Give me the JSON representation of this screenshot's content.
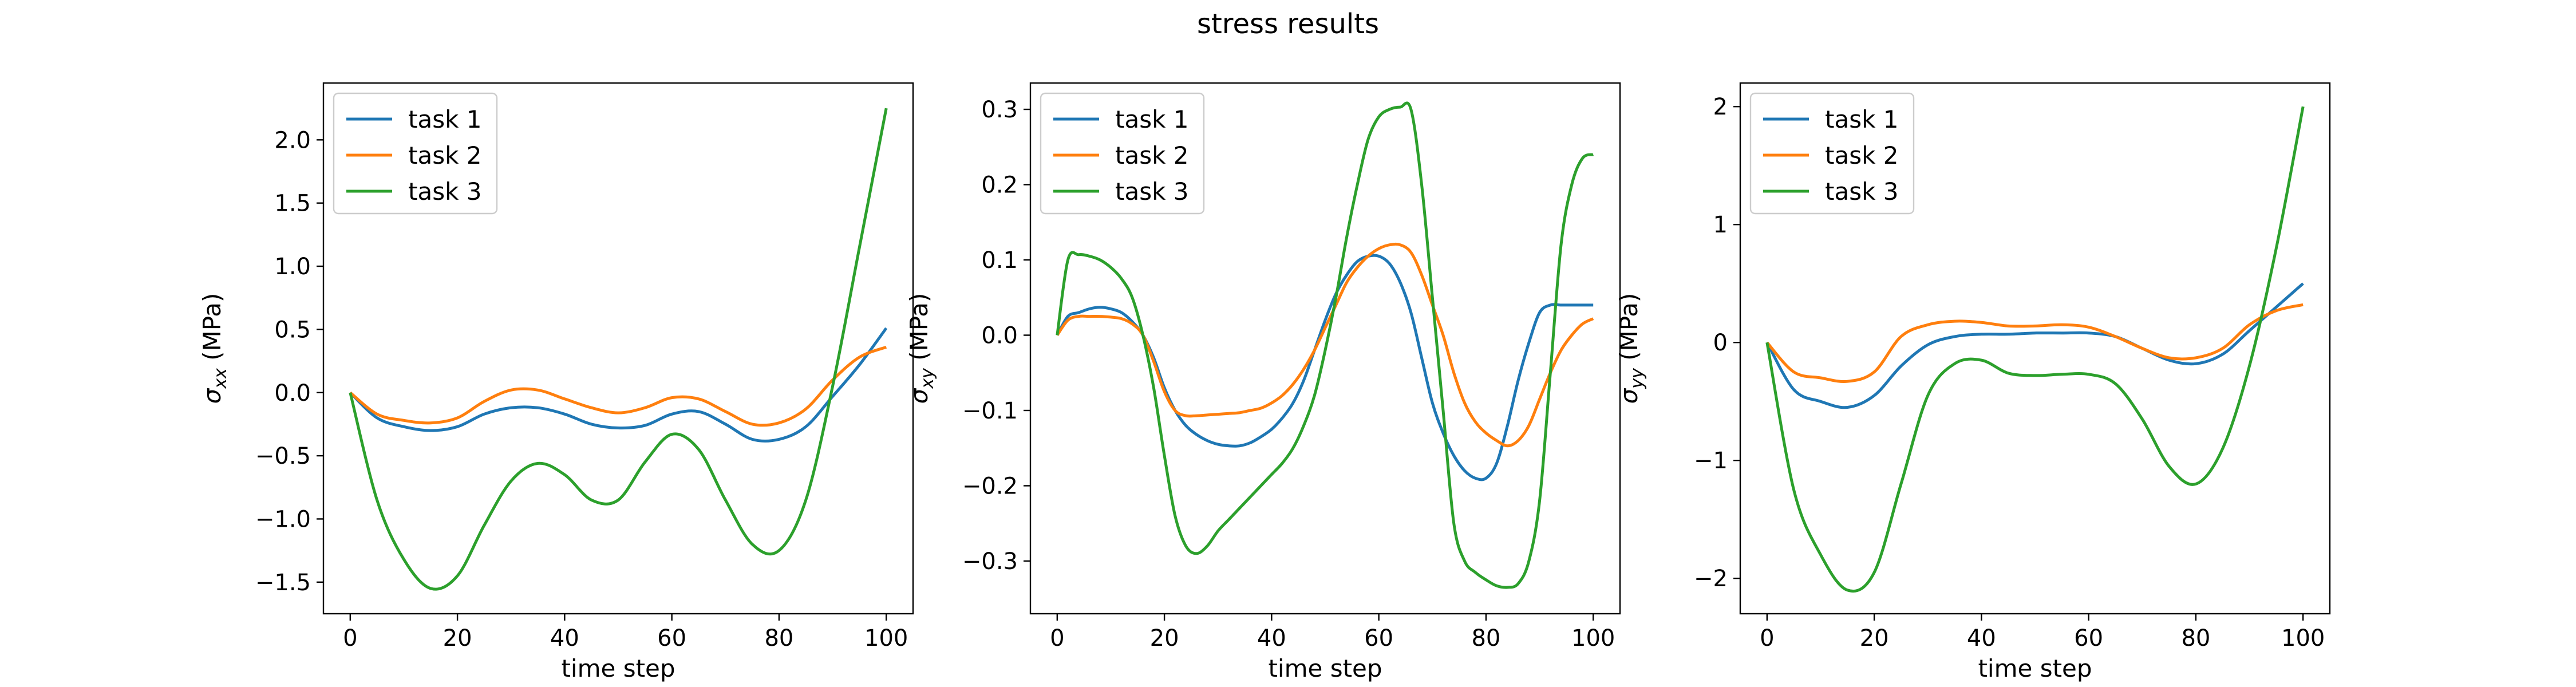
{
  "figure": {
    "title": "stress results"
  },
  "chart_data": [
    {
      "type": "line",
      "xlabel": "time step",
      "ylabel": "σxx (MPa)",
      "ylabel_math": {
        "sym": "σ",
        "sub": "xx",
        "unit": " (MPa)"
      },
      "xlim": [
        -5,
        105
      ],
      "ylim": [
        -1.75,
        2.45
      ],
      "xticks": [
        0,
        20,
        40,
        60,
        80,
        100
      ],
      "yticks": [
        -1.5,
        -1.0,
        -0.5,
        0.0,
        0.5,
        1.0,
        1.5,
        2.0
      ],
      "ytick_labels": [
        "−1.5",
        "−1.0",
        "−0.5",
        "0.0",
        "0.5",
        "1.0",
        "1.5",
        "2.0"
      ],
      "grid": false,
      "legend": "upper-left",
      "x": [
        0,
        5,
        10,
        15,
        20,
        25,
        30,
        35,
        40,
        45,
        50,
        55,
        60,
        65,
        70,
        75,
        80,
        85,
        90,
        95,
        100
      ],
      "series": [
        {
          "name": "task 1",
          "color": "#1f77b4",
          "values": [
            0.0,
            -0.2,
            -0.27,
            -0.3,
            -0.27,
            -0.17,
            -0.12,
            -0.12,
            -0.17,
            -0.25,
            -0.28,
            -0.26,
            -0.17,
            -0.15,
            -0.25,
            -0.37,
            -0.37,
            -0.27,
            -0.03,
            0.22,
            0.51
          ]
        },
        {
          "name": "task 2",
          "color": "#ff7f0e",
          "values": [
            0.0,
            -0.17,
            -0.22,
            -0.24,
            -0.2,
            -0.07,
            0.02,
            0.02,
            -0.05,
            -0.12,
            -0.16,
            -0.12,
            -0.04,
            -0.05,
            -0.15,
            -0.25,
            -0.24,
            -0.13,
            0.1,
            0.28,
            0.36
          ]
        },
        {
          "name": "task 3",
          "color": "#2ca02c",
          "values": [
            0.0,
            -0.85,
            -1.32,
            -1.55,
            -1.45,
            -1.05,
            -0.7,
            -0.56,
            -0.65,
            -0.85,
            -0.85,
            -0.55,
            -0.33,
            -0.45,
            -0.85,
            -1.2,
            -1.25,
            -0.85,
            0.05,
            1.15,
            2.25
          ]
        }
      ]
    },
    {
      "type": "line",
      "xlabel": "time step",
      "ylabel": "σxy (MPa)",
      "ylabel_math": {
        "sym": "σ",
        "sub": "xy",
        "unit": " (MPa)"
      },
      "xlim": [
        -5,
        105
      ],
      "ylim": [
        -0.37,
        0.335
      ],
      "xticks": [
        0,
        20,
        40,
        60,
        80,
        100
      ],
      "yticks": [
        -0.3,
        -0.2,
        -0.1,
        0.0,
        0.1,
        0.2,
        0.3
      ],
      "ytick_labels": [
        "−0.3",
        "−0.2",
        "−0.1",
        "0.0",
        "0.1",
        "0.2",
        "0.3"
      ],
      "grid": false,
      "legend": "upper-left",
      "x": [
        0,
        2,
        4,
        6,
        8,
        10,
        12,
        14,
        16,
        18,
        20,
        22,
        24,
        26,
        28,
        30,
        32,
        34,
        36,
        38,
        40,
        42,
        44,
        46,
        48,
        50,
        52,
        54,
        56,
        58,
        60,
        62,
        64,
        66,
        68,
        70,
        72,
        74,
        76,
        78,
        80,
        82,
        84,
        86,
        88,
        90,
        92,
        94,
        96,
        98,
        100
      ],
      "series": [
        {
          "name": "task 1",
          "color": "#1f77b4",
          "values": [
            0.0,
            0.025,
            0.03,
            0.035,
            0.037,
            0.035,
            0.03,
            0.018,
            0.0,
            -0.03,
            -0.07,
            -0.1,
            -0.12,
            -0.132,
            -0.14,
            -0.145,
            -0.147,
            -0.147,
            -0.143,
            -0.135,
            -0.125,
            -0.11,
            -0.09,
            -0.06,
            -0.02,
            0.02,
            0.055,
            0.08,
            0.098,
            0.105,
            0.105,
            0.095,
            0.07,
            0.03,
            -0.03,
            -0.09,
            -0.13,
            -0.16,
            -0.18,
            -0.19,
            -0.19,
            -0.17,
            -0.12,
            -0.06,
            -0.01,
            0.03,
            0.04,
            0.04,
            0.04,
            0.04,
            0.04
          ]
        },
        {
          "name": "task 2",
          "color": "#ff7f0e",
          "values": [
            0.0,
            0.02,
            0.025,
            0.025,
            0.025,
            0.024,
            0.022,
            0.015,
            0.0,
            -0.035,
            -0.075,
            -0.1,
            -0.107,
            -0.107,
            -0.106,
            -0.105,
            -0.104,
            -0.103,
            -0.1,
            -0.097,
            -0.09,
            -0.08,
            -0.065,
            -0.045,
            -0.02,
            0.01,
            0.04,
            0.07,
            0.09,
            0.105,
            0.115,
            0.12,
            0.12,
            0.11,
            0.08,
            0.04,
            0.0,
            -0.05,
            -0.09,
            -0.115,
            -0.13,
            -0.14,
            -0.147,
            -0.14,
            -0.12,
            -0.085,
            -0.05,
            -0.02,
            0.0,
            0.015,
            0.022
          ]
        },
        {
          "name": "task 3",
          "color": "#2ca02c",
          "values": [
            0.0,
            0.1,
            0.107,
            0.105,
            0.1,
            0.09,
            0.075,
            0.05,
            0.0,
            -0.07,
            -0.16,
            -0.24,
            -0.28,
            -0.29,
            -0.28,
            -0.26,
            -0.245,
            -0.23,
            -0.215,
            -0.2,
            -0.185,
            -0.17,
            -0.15,
            -0.12,
            -0.08,
            -0.02,
            0.05,
            0.13,
            0.2,
            0.26,
            0.29,
            0.3,
            0.303,
            0.3,
            0.2,
            0.05,
            -0.1,
            -0.25,
            -0.3,
            -0.315,
            -0.325,
            -0.333,
            -0.335,
            -0.33,
            -0.3,
            -0.22,
            -0.05,
            0.12,
            0.2,
            0.235,
            0.24
          ]
        }
      ]
    },
    {
      "type": "line",
      "xlabel": "time step",
      "ylabel": "σyy (MPa)",
      "ylabel_math": {
        "sym": "σ",
        "sub": "yy",
        "unit": " (MPa)"
      },
      "xlim": [
        -5,
        105
      ],
      "ylim": [
        -2.3,
        2.2
      ],
      "xticks": [
        0,
        20,
        40,
        60,
        80,
        100
      ],
      "yticks": [
        -2,
        -1,
        0,
        1,
        2
      ],
      "ytick_labels": [
        "−2",
        "−1",
        "0",
        "1",
        "2"
      ],
      "grid": false,
      "legend": "upper-left",
      "x": [
        0,
        5,
        10,
        15,
        20,
        25,
        30,
        35,
        40,
        45,
        50,
        55,
        60,
        65,
        70,
        75,
        80,
        85,
        90,
        95,
        100
      ],
      "series": [
        {
          "name": "task 1",
          "color": "#1f77b4",
          "values": [
            0.0,
            -0.4,
            -0.5,
            -0.55,
            -0.45,
            -0.2,
            -0.02,
            0.05,
            0.07,
            0.07,
            0.08,
            0.08,
            0.08,
            0.05,
            -0.05,
            -0.15,
            -0.18,
            -0.1,
            0.1,
            0.3,
            0.5
          ]
        },
        {
          "name": "task 2",
          "color": "#ff7f0e",
          "values": [
            0.0,
            -0.25,
            -0.3,
            -0.33,
            -0.25,
            0.05,
            0.15,
            0.18,
            0.17,
            0.14,
            0.14,
            0.15,
            0.13,
            0.05,
            -0.05,
            -0.13,
            -0.13,
            -0.05,
            0.15,
            0.27,
            0.32
          ]
        },
        {
          "name": "task 3",
          "color": "#2ca02c",
          "values": [
            0.0,
            -1.25,
            -1.8,
            -2.1,
            -1.95,
            -1.2,
            -0.45,
            -0.18,
            -0.15,
            -0.26,
            -0.28,
            -0.27,
            -0.27,
            -0.35,
            -0.65,
            -1.05,
            -1.2,
            -0.9,
            -0.2,
            0.8,
            2.0
          ]
        }
      ]
    }
  ]
}
